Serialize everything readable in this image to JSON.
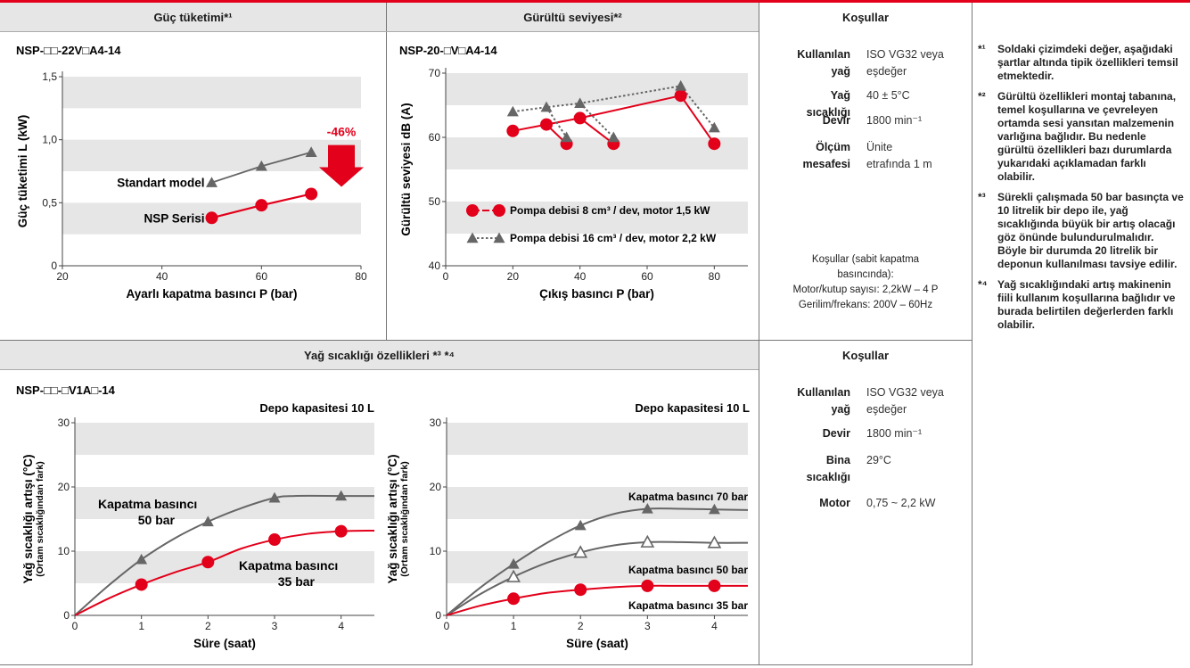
{
  "headers": {
    "power": "Güç tüketimi*¹",
    "noise": "Gürültü seviyesi*²",
    "cond_top": "Koşullar",
    "oil": "Yağ sıcaklığı özellikleri *³ *⁴",
    "cond_bottom": "Koşullar"
  },
  "conditions_top": {
    "rows": [
      {
        "key": "Kullanılan yağ",
        "value": "ISO VG32 veya eşdeğer"
      },
      {
        "key": "Yağ sıcaklığı",
        "value": "40 ± 5°C"
      },
      {
        "key": "Devir",
        "value": "1800 min⁻¹"
      },
      {
        "key": "Ölçüm mesafesi",
        "value": "Ünite etrafında 1 m"
      }
    ],
    "footer": [
      "Koşullar (sabit kapatma",
      "basıncında):",
      "Motor/kutup sayısı: 2,2kW – 4 P",
      "Gerilim/frekans: 200V – 60Hz"
    ]
  },
  "conditions_bottom": {
    "rows": [
      {
        "key": "Kullanılan yağ",
        "value": "ISO VG32 veya eşdeğer"
      },
      {
        "key": "Devir",
        "value": "1800 min⁻¹"
      },
      {
        "key": "Bina sıcaklığı",
        "value": "29°C"
      },
      {
        "key": "Motor",
        "value": "0,75 ~ 2,2 kW"
      }
    ]
  },
  "notes": [
    {
      "mark": "*¹",
      "text": "Soldaki çizimdeki değer, aşağıdaki şartlar altında tipik özellikleri temsil etmektedir."
    },
    {
      "mark": "*²",
      "text": "Gürültü özellikleri montaj tabanına, temel koşullarına ve çevreleyen ortamda sesi yansıtan malzemenin varlığına bağlıdır. Bu nedenle gürültü özellikleri bazı durumlarda yukarıdaki açıklamadan farklı olabilir."
    },
    {
      "mark": "*³",
      "text": "Sürekli çalışmada 50 bar basınçta ve 10 litrelik bir depo ile, yağ sıcaklığında büyük bir artış olacağı göz önünde bulundurulmalıdır. Böyle bir durumda 20 litrelik bir deponun kullanılması tavsiye edilir."
    },
    {
      "mark": "*⁴",
      "text": "Yağ sıcaklığındaki artış makinenin fiili kullanım koşullarına bağlıdır ve burada belirtilen değerlerden farklı olabilir."
    }
  ],
  "colors": {
    "red": "#e2001a",
    "gray": "#666666",
    "band": "#e6e6e6",
    "header_bg": "#e6e6e6"
  },
  "chart_data": [
    {
      "type": "line",
      "title": "NSP-□□-22V□A4-14",
      "xlabel": "Ayarlı kapatma basıncı P (bar)",
      "ylabel": "Güç tüketimi L (kW)",
      "xlim": [
        20,
        80
      ],
      "ylim": [
        0,
        1.5
      ],
      "xticks": [
        20,
        40,
        60,
        80
      ],
      "yticks": [
        "0",
        "0,5",
        "1,0",
        "1,5"
      ],
      "yticks_values": [
        0,
        0.5,
        1.0,
        1.5
      ],
      "bands": [
        [
          0.25,
          0.5
        ],
        [
          0.75,
          1.0
        ],
        [
          1.25,
          1.5
        ]
      ],
      "series": [
        {
          "name": "Standart model",
          "color": "gray",
          "marker": "triangle",
          "x": [
            50,
            60,
            70
          ],
          "y": [
            0.66,
            0.79,
            0.9
          ]
        },
        {
          "name": "NSP Serisi",
          "color": "red",
          "marker": "circle",
          "x": [
            50,
            60,
            70
          ],
          "y": [
            0.38,
            0.48,
            0.57
          ]
        }
      ],
      "annotation": "-46%"
    },
    {
      "type": "line",
      "title": "NSP-20-□V□A4-14",
      "xlabel": "Çıkış basıncı P (bar)",
      "ylabel": "Gürültü seviyesi dB (A)",
      "xlim": [
        0,
        90
      ],
      "ylim": [
        40,
        70
      ],
      "xticks": [
        0,
        20,
        40,
        60,
        80
      ],
      "yticks": [
        "40",
        "50",
        "60",
        "70"
      ],
      "yticks_values": [
        40,
        50,
        60,
        70
      ],
      "bands": [
        [
          45,
          50
        ],
        [
          55,
          60
        ],
        [
          65,
          70
        ]
      ],
      "series": [
        {
          "name": "Pompa debisi 8 cm³ / dev, motor 1,5 kW",
          "color": "red",
          "marker": "circle",
          "x": [
            20,
            30,
            40,
            70
          ],
          "y": [
            61,
            62,
            63,
            66.5
          ]
        },
        {
          "name": "Pompa debisi 16 cm³ / dev, motor 2,2 kW",
          "color": "gray",
          "marker": "triangle",
          "dotted": true,
          "x": [
            20,
            30,
            40,
            70
          ],
          "y": [
            64,
            64.7,
            65.3,
            68
          ]
        }
      ],
      "drops": [
        {
          "color": "red",
          "marker": "circle",
          "from": [
            30,
            62
          ],
          "to": [
            36,
            59
          ]
        },
        {
          "color": "red",
          "marker": "circle",
          "from": [
            40,
            63
          ],
          "to": [
            50,
            59
          ]
        },
        {
          "color": "red",
          "marker": "circle",
          "from": [
            70,
            66.5
          ],
          "to": [
            80,
            59
          ]
        },
        {
          "color": "gray",
          "marker": "triangle",
          "dotted": true,
          "from": [
            30,
            64.7
          ],
          "to": [
            36,
            60
          ]
        },
        {
          "color": "gray",
          "marker": "triangle",
          "dotted": true,
          "from": [
            40,
            65.3
          ],
          "to": [
            50,
            60
          ]
        },
        {
          "color": "gray",
          "marker": "triangle",
          "dotted": true,
          "from": [
            70,
            68
          ],
          "to": [
            80,
            61.5
          ]
        }
      ]
    },
    {
      "type": "line",
      "title": "NSP-□□-□V1A□-14",
      "subtitle": "Depo kapasitesi 10 L",
      "xlabel": "Süre (saat)",
      "ylabel": "Yağ sıcaklığı artışı (°C)",
      "ylabel2": "(Ortam sıcaklığından fark)",
      "xlim": [
        0,
        4.5
      ],
      "ylim": [
        0,
        30
      ],
      "xticks": [
        0,
        1,
        2,
        3,
        4
      ],
      "yticks": [
        "0",
        "10",
        "20",
        "30"
      ],
      "yticks_values": [
        0,
        10,
        20,
        30
      ],
      "bands": [
        [
          5,
          10
        ],
        [
          15,
          20
        ],
        [
          25,
          30
        ]
      ],
      "series": [
        {
          "name": "Kapatma basıncı 50 bar",
          "color": "gray",
          "marker": "triangle",
          "x": [
            0,
            1,
            2,
            3,
            4
          ],
          "y": [
            0,
            8.7,
            14.6,
            18.3,
            18.6
          ],
          "curve": [
            [
              0,
              0
            ],
            [
              0.5,
              4.6
            ],
            [
              1,
              8.7
            ],
            [
              1.5,
              12
            ],
            [
              2,
              14.6
            ],
            [
              2.5,
              16.7
            ],
            [
              3,
              18.3
            ],
            [
              3.3,
              18.6
            ],
            [
              4,
              18.6
            ],
            [
              4.5,
              18.6
            ]
          ]
        },
        {
          "name": "Kapatma basıncı 35 bar",
          "color": "red",
          "marker": "circle",
          "x": [
            1,
            2,
            3,
            4
          ],
          "y": [
            4.8,
            8.3,
            11.8,
            13.1
          ],
          "curve": [
            [
              0,
              0
            ],
            [
              0.5,
              2.6
            ],
            [
              1,
              4.8
            ],
            [
              1.5,
              6.7
            ],
            [
              2,
              8.3
            ],
            [
              2.5,
              10.4
            ],
            [
              3,
              11.8
            ],
            [
              3.5,
              12.7
            ],
            [
              4,
              13.1
            ],
            [
              4.5,
              13.2
            ]
          ]
        }
      ],
      "labels": [
        {
          "lines": [
            "Kapatma basıncı",
            "50 bar"
          ]
        },
        {
          "lines": [
            "Kapatma basıncı",
            "35 bar"
          ]
        }
      ]
    },
    {
      "type": "line",
      "subtitle": "Depo kapasitesi 10 L",
      "xlabel": "Süre (saat)",
      "ylabel": "Yağ sıcaklığı artışı (°C)",
      "ylabel2": "(Ortam sıcaklığından fark)",
      "xlim": [
        0,
        4.5
      ],
      "ylim": [
        0,
        30
      ],
      "xticks": [
        0,
        1,
        2,
        3,
        4
      ],
      "yticks": [
        "0",
        "10",
        "20",
        "30"
      ],
      "yticks_values": [
        0,
        10,
        20,
        30
      ],
      "bands": [
        [
          5,
          10
        ],
        [
          15,
          20
        ],
        [
          25,
          30
        ]
      ],
      "series": [
        {
          "name": "Kapatma basıncı 70 bar",
          "color": "gray",
          "marker": "triangle",
          "x": [
            1,
            2,
            3,
            4
          ],
          "y": [
            8,
            14,
            16.6,
            16.5
          ],
          "curve": [
            [
              0,
              0
            ],
            [
              0.5,
              4.3
            ],
            [
              1,
              8
            ],
            [
              1.5,
              11.3
            ],
            [
              2,
              14
            ],
            [
              2.5,
              15.8
            ],
            [
              3,
              16.6
            ],
            [
              3.5,
              16.6
            ],
            [
              4,
              16.5
            ],
            [
              4.5,
              16.4
            ]
          ]
        },
        {
          "name": "Kapatma basıncı 50 bar",
          "color": "gray",
          "marker": "triangle-open",
          "x": [
            1,
            2,
            3,
            4
          ],
          "y": [
            6,
            9.8,
            11.4,
            11.3
          ],
          "curve": [
            [
              0,
              0
            ],
            [
              0.5,
              3.3
            ],
            [
              1,
              6
            ],
            [
              1.5,
              8.2
            ],
            [
              2,
              9.8
            ],
            [
              2.5,
              10.9
            ],
            [
              3,
              11.4
            ],
            [
              3.5,
              11.4
            ],
            [
              4,
              11.3
            ],
            [
              4.5,
              11.3
            ]
          ]
        },
        {
          "name": "Kapatma basıncı 35 bar",
          "color": "red",
          "marker": "circle",
          "x": [
            1,
            2,
            3,
            4
          ],
          "y": [
            2.6,
            4,
            4.6,
            4.6
          ],
          "curve": [
            [
              0,
              0
            ],
            [
              0.5,
              1.5
            ],
            [
              1,
              2.6
            ],
            [
              1.5,
              3.5
            ],
            [
              2,
              4
            ],
            [
              2.5,
              4.4
            ],
            [
              3,
              4.6
            ],
            [
              3.5,
              4.6
            ],
            [
              4,
              4.6
            ],
            [
              4.5,
              4.6
            ]
          ]
        }
      ],
      "labels": [
        {
          "lines": [
            "Kapatma basıncı 70 bar"
          ]
        },
        {
          "lines": [
            "Kapatma basıncı 50 bar"
          ]
        },
        {
          "lines": [
            "Kapatma basıncı 35 bar"
          ]
        }
      ]
    }
  ]
}
